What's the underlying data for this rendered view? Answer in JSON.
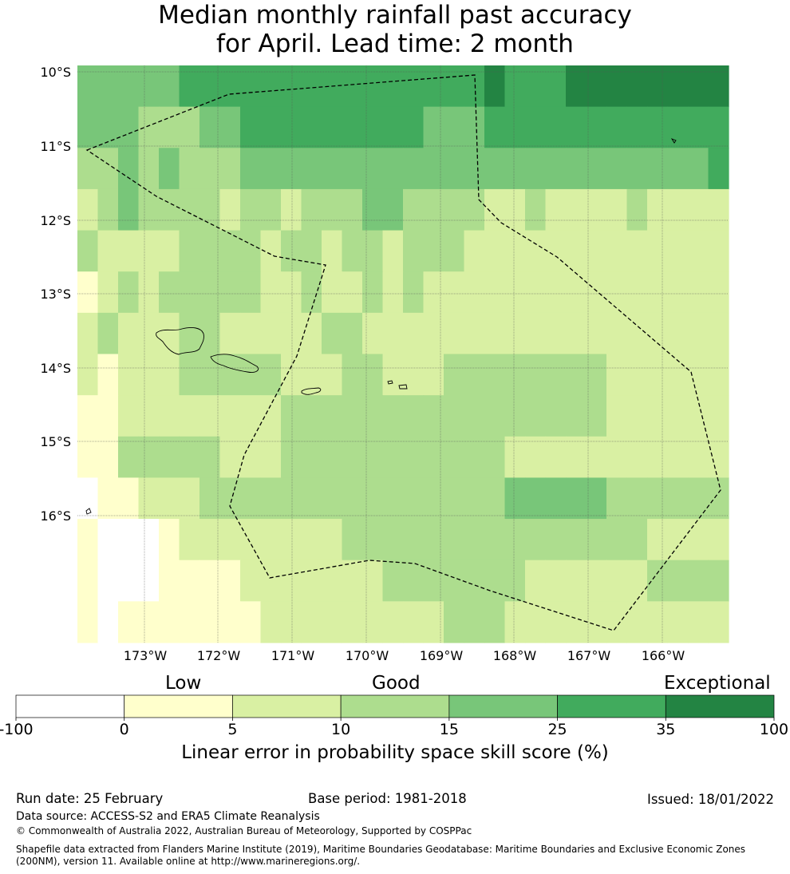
{
  "title_line1": "Median monthly rainfall past accuracy",
  "title_line2": "for April. Lead time: 2 month",
  "map": {
    "lat_labels": [
      "10°S",
      "11°S",
      "12°S",
      "13°S",
      "14°S",
      "15°S",
      "16°S"
    ],
    "lon_labels": [
      "173°W",
      "172°W",
      "171°W",
      "170°W",
      "169°W",
      "168°W",
      "167°W",
      "166°W"
    ],
    "lon_range": [
      -173.9,
      -165.1
    ],
    "lat_range": [
      -17.8,
      -10.0
    ],
    "columns": 11,
    "rows": 14,
    "grid_categories": [
      [
        4,
        4,
        4,
        4,
        4,
        5,
        5,
        5,
        5,
        5,
        5,
        5,
        5,
        5,
        5,
        5,
        5,
        5,
        5,
        5,
        6,
        5,
        5,
        5,
        6,
        6,
        6,
        6,
        6,
        6,
        6,
        6
      ],
      [
        4,
        4,
        4,
        3,
        3,
        3,
        4,
        4,
        5,
        5,
        5,
        5,
        5,
        5,
        5,
        5,
        5,
        4,
        4,
        4,
        5,
        5,
        5,
        5,
        5,
        5,
        5,
        5,
        5,
        5,
        5,
        5
      ],
      [
        3,
        3,
        4,
        3,
        4,
        3,
        3,
        3,
        4,
        4,
        4,
        4,
        4,
        4,
        4,
        4,
        4,
        4,
        4,
        4,
        4,
        4,
        4,
        4,
        4,
        4,
        4,
        4,
        4,
        4,
        4,
        5
      ],
      [
        2,
        3,
        4,
        3,
        3,
        3,
        3,
        2,
        3,
        3,
        2,
        3,
        3,
        3,
        4,
        4,
        3,
        3,
        3,
        3,
        2,
        2,
        3,
        2,
        2,
        2,
        2,
        3,
        2,
        2,
        2,
        2
      ],
      [
        3,
        2,
        2,
        2,
        2,
        3,
        3,
        3,
        3,
        2,
        3,
        3,
        2,
        3,
        3,
        2,
        3,
        3,
        3,
        2,
        2,
        2,
        2,
        2,
        2,
        2,
        2,
        2,
        2,
        2,
        2,
        2
      ],
      [
        1,
        2,
        3,
        2,
        3,
        3,
        3,
        3,
        3,
        2,
        2,
        3,
        2,
        2,
        3,
        2,
        3,
        2,
        2,
        2,
        2,
        2,
        2,
        2,
        2,
        2,
        2,
        2,
        2,
        2,
        2,
        2
      ],
      [
        2,
        3,
        2,
        2,
        2,
        3,
        3,
        2,
        2,
        2,
        2,
        2,
        3,
        3,
        2,
        2,
        2,
        2,
        2,
        2,
        2,
        2,
        2,
        2,
        2,
        2,
        2,
        2,
        2,
        2,
        2,
        2
      ],
      [
        2,
        1,
        2,
        2,
        2,
        3,
        3,
        3,
        3,
        3,
        2,
        2,
        2,
        3,
        3,
        2,
        2,
        2,
        3,
        3,
        3,
        3,
        3,
        3,
        3,
        3,
        2,
        2,
        2,
        2,
        2,
        2
      ],
      [
        1,
        1,
        2,
        2,
        2,
        2,
        2,
        2,
        2,
        2,
        3,
        3,
        3,
        3,
        3,
        3,
        3,
        3,
        3,
        3,
        3,
        3,
        3,
        3,
        3,
        3,
        2,
        2,
        2,
        2,
        2,
        2
      ],
      [
        1,
        1,
        3,
        3,
        3,
        3,
        3,
        2,
        2,
        2,
        3,
        3,
        3,
        3,
        3,
        3,
        3,
        3,
        3,
        3,
        3,
        2,
        2,
        2,
        2,
        2,
        2,
        2,
        2,
        2,
        2,
        2
      ],
      [
        0,
        1,
        1,
        2,
        2,
        2,
        3,
        3,
        3,
        3,
        3,
        3,
        3,
        3,
        3,
        3,
        3,
        3,
        3,
        3,
        3,
        4,
        4,
        4,
        4,
        4,
        3,
        3,
        3,
        3,
        3,
        3
      ],
      [
        1,
        0,
        0,
        0,
        1,
        2,
        2,
        2,
        2,
        2,
        2,
        2,
        2,
        3,
        3,
        3,
        3,
        3,
        3,
        3,
        3,
        3,
        3,
        3,
        3,
        3,
        3,
        3,
        2,
        2,
        2,
        2
      ],
      [
        1,
        0,
        0,
        0,
        1,
        1,
        1,
        1,
        2,
        2,
        2,
        2,
        2,
        2,
        2,
        3,
        3,
        3,
        3,
        3,
        3,
        3,
        2,
        2,
        2,
        2,
        2,
        2,
        3,
        3,
        3,
        3
      ],
      [
        1,
        0,
        1,
        1,
        1,
        1,
        1,
        1,
        1,
        2,
        2,
        2,
        2,
        2,
        2,
        2,
        2,
        2,
        3,
        3,
        3,
        2,
        2,
        2,
        2,
        2,
        2,
        2,
        2,
        2,
        2,
        2
      ]
    ]
  },
  "colorbar": {
    "category_labels": [
      "Low",
      "Good",
      "Exceptional"
    ],
    "boundaries": [
      "-100",
      "0",
      "5",
      "10",
      "15",
      "25",
      "35",
      "100"
    ],
    "colors": [
      "#ffffff",
      "#ffffcc",
      "#d9f0a3",
      "#addd8e",
      "#78c679",
      "#41ab5d",
      "#238443"
    ],
    "label": "Linear error in probability space skill score (%)"
  },
  "footer": {
    "run_date": "Run date: 25 February",
    "base_period": "Base period: 1981-2018",
    "issued": "Issued: 18/01/2022",
    "data_source": "Data source: ACCESS-S2 and ERA5 Climate Reanalysis",
    "copyright": "© Commonwealth of Australia 2022, Australian Bureau of Meteorology, Supported by COSPPac",
    "shapefile_line1": "Shapefile data extracted from Flanders Marine Institute (2019), Maritime Boundaries Geodatabase: Maritime Boundaries and Exclusive Economic Zones",
    "shapefile_line2": "(200NM), version 11. Available online at http://www.marineregions.org/."
  }
}
